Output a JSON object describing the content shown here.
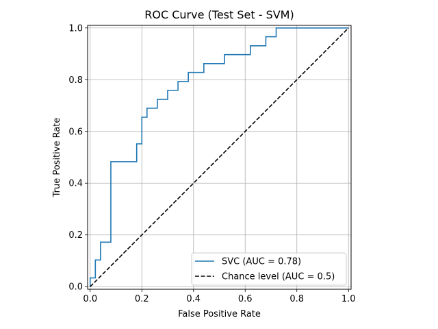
{
  "chart_data": {
    "type": "line",
    "title": "ROC Curve (Test Set - SVM)",
    "xlabel": "False Positive Rate",
    "ylabel": "True Positive Rate",
    "xlim": [
      -0.01,
      1.01
    ],
    "ylim": [
      -0.01,
      1.01
    ],
    "xticks": [
      "0.0",
      "0.2",
      "0.4",
      "0.6",
      "0.8",
      "1.0"
    ],
    "yticks": [
      "0.0",
      "0.2",
      "0.4",
      "0.6",
      "0.8",
      "1.0"
    ],
    "grid": true,
    "legend_position": "lower-right",
    "series": [
      {
        "name": "SVC (AUC = 0.78)",
        "color": "#1f77b4",
        "style": "solid",
        "x": [
          0.0,
          0.0,
          0.02,
          0.02,
          0.04,
          0.04,
          0.08,
          0.08,
          0.18,
          0.18,
          0.2,
          0.2,
          0.22,
          0.22,
          0.26,
          0.26,
          0.3,
          0.3,
          0.34,
          0.34,
          0.38,
          0.38,
          0.44,
          0.44,
          0.52,
          0.52,
          0.62,
          0.62,
          0.68,
          0.68,
          0.72,
          0.72,
          1.0
        ],
        "y": [
          0.0,
          0.034,
          0.034,
          0.103,
          0.103,
          0.172,
          0.172,
          0.483,
          0.483,
          0.552,
          0.552,
          0.655,
          0.655,
          0.69,
          0.69,
          0.724,
          0.724,
          0.759,
          0.759,
          0.793,
          0.793,
          0.828,
          0.828,
          0.862,
          0.862,
          0.897,
          0.897,
          0.931,
          0.931,
          0.966,
          0.966,
          1.0,
          1.0
        ]
      },
      {
        "name": "Chance level (AUC = 0.5)",
        "color": "#000000",
        "style": "dashed",
        "x": [
          0,
          1
        ],
        "y": [
          0,
          1
        ]
      }
    ]
  }
}
